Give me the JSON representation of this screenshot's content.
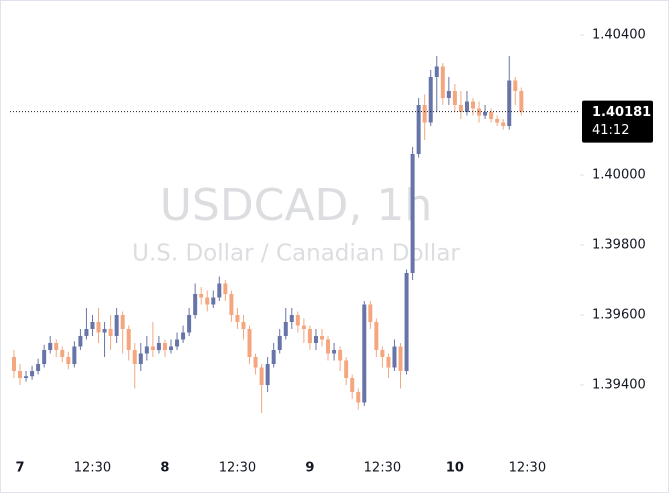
{
  "chart_data": {
    "type": "candlestick",
    "title": "USDCAD, 1h",
    "subtitle": "U.S. Dollar / Canadian Dollar",
    "categories": [
      null,
      "7",
      null,
      null,
      null,
      null,
      null,
      null,
      null,
      null,
      null,
      null,
      null,
      "12:30",
      null,
      null,
      null,
      null,
      null,
      null,
      null,
      null,
      null,
      null,
      null,
      "8",
      null,
      null,
      null,
      null,
      null,
      null,
      null,
      null,
      null,
      null,
      null,
      "12:30",
      null,
      null,
      null,
      null,
      null,
      null,
      null,
      null,
      null,
      null,
      null,
      "9",
      null,
      null,
      null,
      null,
      null,
      null,
      null,
      null,
      null,
      null,
      null,
      "12:30",
      null,
      null,
      null,
      null,
      null,
      null,
      null,
      null,
      null,
      null,
      null,
      "10",
      null,
      null,
      null,
      null,
      null,
      null,
      null,
      null,
      null,
      null,
      null,
      "12:30"
    ],
    "open": [
      1.3948,
      1.3944,
      1.3942,
      1.39425,
      1.3944,
      1.3946,
      1.395,
      1.3952,
      1.395,
      1.3948,
      1.3946,
      1.3951,
      1.3954,
      1.3956,
      1.3958,
      1.3955,
      1.3956,
      1.3954,
      1.396,
      1.3956,
      1.395,
      1.3946,
      1.3949,
      1.3951,
      1.395,
      1.3952,
      1.395,
      1.3951,
      1.3953,
      1.3955,
      1.396,
      1.3966,
      1.3965,
      1.3963,
      1.3965,
      1.3969,
      1.3966,
      1.396,
      1.3958,
      1.3956,
      1.3948,
      1.3945,
      1.394,
      1.3946,
      1.395,
      1.3954,
      1.3958,
      1.396,
      1.3957,
      1.3956,
      1.3952,
      1.3954,
      1.3953,
      1.3949,
      1.395,
      1.3947,
      1.3942,
      1.3938,
      1.3935,
      1.3963,
      1.3958,
      1.395,
      1.3948,
      1.3945,
      1.3951,
      1.3944,
      1.3972,
      1.4006,
      1.402,
      1.4015,
      1.4028,
      1.4031,
      1.4022,
      1.4024,
      1.402,
      1.4018,
      1.4021,
      1.4019,
      1.4017,
      1.4018,
      1.4016,
      1.4015,
      1.4014,
      1.4027,
      1.4024,
      null
    ],
    "high": [
      1.395,
      1.3946,
      1.3944,
      1.39455,
      1.39475,
      1.39515,
      1.3954,
      1.3953,
      1.3951,
      1.39495,
      1.39525,
      1.3956,
      1.3962,
      1.396,
      1.3962,
      1.3958,
      1.396,
      1.3962,
      1.3961,
      1.3957,
      1.3952,
      1.3952,
      1.3954,
      1.3958,
      1.3954,
      1.3953,
      1.3953,
      1.3955,
      1.3957,
      1.3962,
      1.3969,
      1.3968,
      1.3967,
      1.3967,
      1.3971,
      1.397,
      1.3967,
      1.3962,
      1.396,
      1.3957,
      1.3949,
      1.3946,
      1.3948,
      1.3952,
      1.3956,
      1.3962,
      1.3962,
      1.3961,
      1.3959,
      1.3957,
      1.3956,
      1.3956,
      1.3954,
      1.3952,
      1.3951,
      1.3948,
      1.3943,
      1.3939,
      1.3964,
      1.3964,
      1.3959,
      1.3951,
      1.3949,
      1.3953,
      1.3952,
      1.3973,
      1.4008,
      1.4022,
      1.4023,
      1.403,
      1.4034,
      1.4032,
      1.4028,
      1.4026,
      1.4024,
      1.4024,
      1.4022,
      1.4021,
      1.402,
      1.4019,
      1.4017,
      1.4016,
      1.4034,
      1.4028,
      1.4025,
      null
    ],
    "low": [
      1.3942,
      1.394,
      1.3941,
      1.39415,
      1.3943,
      1.3945,
      1.3949,
      1.3948,
      1.39465,
      1.39445,
      1.3945,
      1.395,
      1.3953,
      1.3954,
      1.3952,
      1.3948,
      1.395,
      1.3952,
      1.3949,
      1.3947,
      1.3939,
      1.3944,
      1.3947,
      1.3948,
      1.3949,
      1.3948,
      1.3949,
      1.395,
      1.3952,
      1.3954,
      1.3959,
      1.3963,
      1.3961,
      1.3962,
      1.3964,
      1.3964,
      1.3958,
      1.3956,
      1.3953,
      1.3946,
      1.3943,
      1.3932,
      1.3938,
      1.3945,
      1.3949,
      1.3953,
      1.3956,
      1.3955,
      1.3952,
      1.395,
      1.395,
      1.3951,
      1.3947,
      1.3947,
      1.3944,
      1.394,
      1.3936,
      1.3933,
      1.3934,
      1.3956,
      1.3948,
      1.3945,
      1.3942,
      1.3944,
      1.3939,
      1.3943,
      1.397,
      1.4005,
      1.401,
      1.4014,
      1.4018,
      1.402,
      1.402,
      1.4018,
      1.4016,
      1.4017,
      1.4017,
      1.4015,
      1.4016,
      1.4015,
      1.4014,
      1.4013,
      1.4013,
      1.402,
      1.4017,
      null
    ],
    "close": [
      1.3944,
      1.3942,
      1.39425,
      1.3944,
      1.3946,
      1.395,
      1.3952,
      1.395,
      1.3948,
      1.3946,
      1.3951,
      1.3954,
      1.3956,
      1.3958,
      1.3955,
      1.3956,
      1.3954,
      1.396,
      1.3956,
      1.395,
      1.3946,
      1.3949,
      1.3951,
      1.395,
      1.3952,
      1.395,
      1.3951,
      1.3953,
      1.3955,
      1.396,
      1.3966,
      1.3965,
      1.3963,
      1.3965,
      1.3969,
      1.3966,
      1.396,
      1.3958,
      1.3956,
      1.3948,
      1.3945,
      1.394,
      1.3946,
      1.395,
      1.3954,
      1.3958,
      1.396,
      1.3957,
      1.3956,
      1.3952,
      1.3954,
      1.3953,
      1.3949,
      1.395,
      1.3947,
      1.3942,
      1.3938,
      1.3935,
      1.3963,
      1.3958,
      1.395,
      1.3948,
      1.3945,
      1.3951,
      1.3944,
      1.3972,
      1.4006,
      1.402,
      1.4015,
      1.4028,
      1.4031,
      1.4022,
      1.4024,
      1.402,
      1.4018,
      1.4021,
      1.4019,
      1.4017,
      1.4018,
      1.4016,
      1.4015,
      1.4014,
      1.4027,
      1.4024,
      1.40181,
      null
    ],
    "up_color": "#6774a8",
    "down_color": "#f4a77f",
    "ylim": [
      1.392,
      1.405
    ],
    "yticks": [
      {
        "value": 1.394,
        "label": "1.39400"
      },
      {
        "value": 1.396,
        "label": "1.39600"
      },
      {
        "value": 1.398,
        "label": "1.39800"
      },
      {
        "value": 1.4,
        "label": "1.40000"
      },
      {
        "value": 1.404,
        "label": "1.40400"
      }
    ],
    "countdown": "41:12"
  }
}
